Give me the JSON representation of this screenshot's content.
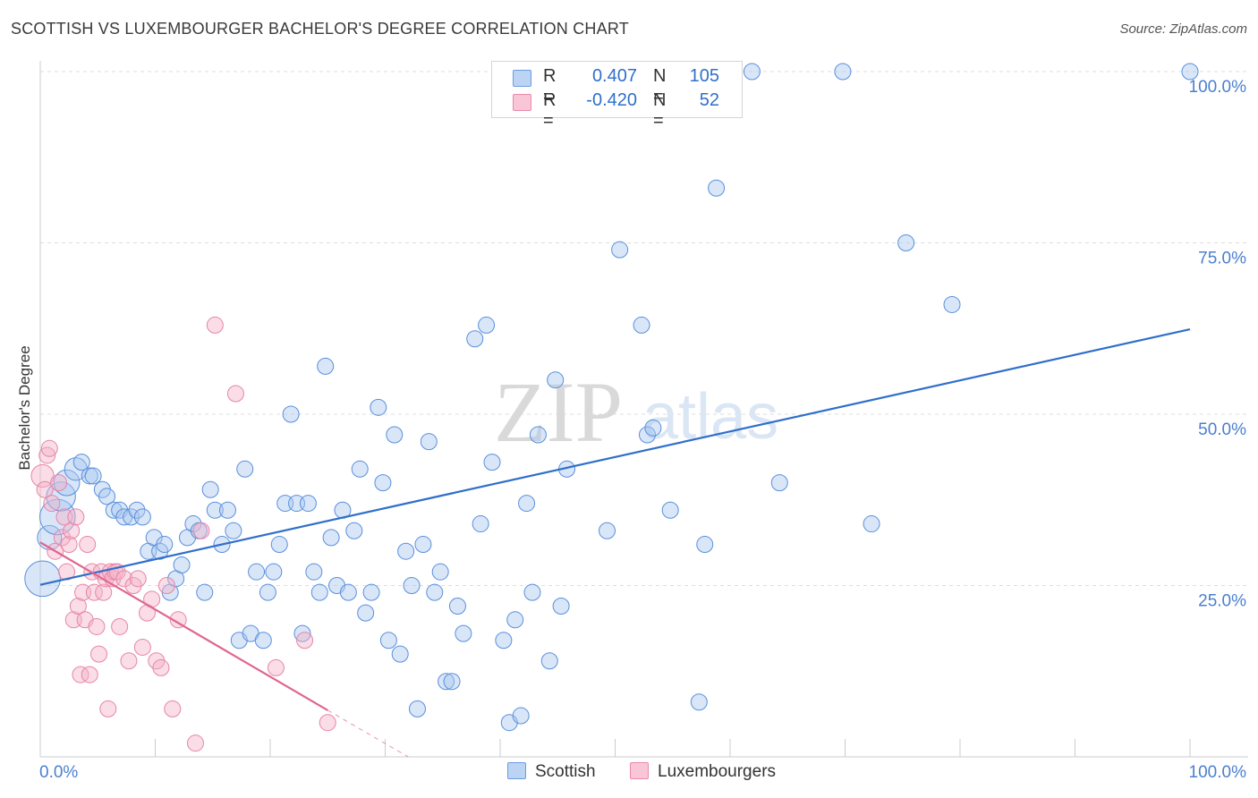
{
  "title": "SCOTTISH VS LUXEMBOURGER BACHELOR'S DEGREE CORRELATION CHART",
  "source": "Source: ZipAtlas.com",
  "watermark": {
    "zip": "ZIP",
    "atlas": "atlas"
  },
  "colors": {
    "blue": "#2f6fca",
    "blue_fill": "#a9c8f0",
    "pink": "#e0668f",
    "pink_fill": "#f5b3c8",
    "grid": "#dddddd",
    "axis_text": "#4a7fd0"
  },
  "legend": {
    "rows": [
      {
        "r_label": "R =",
        "r_value": "0.407",
        "n_label": "N =",
        "n_value": "105"
      },
      {
        "r_label": "R =",
        "r_value": "-0.420",
        "n_label": "N =",
        "n_value": "52"
      }
    ]
  },
  "bottom_legend": {
    "scottish": "Scottish",
    "luxembourgers": "Luxembourgers"
  },
  "chart_data": {
    "type": "scatter",
    "ylabel": "Bachelor's Degree",
    "xlim": [
      0,
      100
    ],
    "ylim": [
      0,
      100
    ],
    "x_tick_labels": {
      "min": "0.0%",
      "max": "100.0%"
    },
    "y_ticks": [
      {
        "value": 100,
        "label": "100.0%"
      },
      {
        "value": 75,
        "label": "75.0%"
      },
      {
        "value": 50,
        "label": "50.0%"
      },
      {
        "value": 25,
        "label": "25.0%"
      }
    ],
    "series": [
      {
        "name": "Scottish",
        "color": "#2f6fca",
        "trend": {
          "x": [
            0,
            100
          ],
          "y": [
            25.1,
            62.4
          ]
        },
        "points": [
          [
            0.2,
            26,
            2.2
          ],
          [
            0.8,
            32,
            1.5
          ],
          [
            1.5,
            35,
            2.2
          ],
          [
            1.8,
            38,
            1.8
          ],
          [
            2.3,
            40,
            1.6
          ],
          [
            3.1,
            42,
            1.4
          ],
          [
            3.6,
            43,
            1
          ],
          [
            4.3,
            41,
            1
          ],
          [
            4.6,
            41,
            1
          ],
          [
            5.4,
            39,
            1
          ],
          [
            5.8,
            38,
            1
          ],
          [
            6.4,
            36,
            1
          ],
          [
            6.9,
            36,
            1
          ],
          [
            7.3,
            35,
            1
          ],
          [
            7.9,
            35,
            1
          ],
          [
            8.4,
            36,
            1
          ],
          [
            8.9,
            35,
            1
          ],
          [
            9.4,
            30,
            1
          ],
          [
            9.9,
            32,
            1
          ],
          [
            10.4,
            30,
            1
          ],
          [
            10.8,
            31,
            1
          ],
          [
            11.3,
            24,
            1
          ],
          [
            11.8,
            26,
            1
          ],
          [
            12.3,
            28,
            1
          ],
          [
            12.8,
            32,
            1
          ],
          [
            13.3,
            34,
            1
          ],
          [
            13.8,
            33,
            1
          ],
          [
            14.3,
            24,
            1
          ],
          [
            14.8,
            39,
            1
          ],
          [
            15.2,
            36,
            1
          ],
          [
            15.8,
            31,
            1
          ],
          [
            16.3,
            36,
            1
          ],
          [
            16.8,
            33,
            1
          ],
          [
            17.3,
            17,
            1
          ],
          [
            17.8,
            42,
            1
          ],
          [
            18.3,
            18,
            1
          ],
          [
            18.8,
            27,
            1
          ],
          [
            19.4,
            17,
            1
          ],
          [
            19.8,
            24,
            1
          ],
          [
            20.3,
            27,
            1
          ],
          [
            20.8,
            31,
            1
          ],
          [
            21.3,
            37,
            1
          ],
          [
            21.8,
            50,
            1
          ],
          [
            22.3,
            37,
            1
          ],
          [
            22.8,
            18,
            1
          ],
          [
            23.3,
            37,
            1
          ],
          [
            23.8,
            27,
            1
          ],
          [
            24.3,
            24,
            1
          ],
          [
            24.8,
            57,
            1
          ],
          [
            25.3,
            32,
            1
          ],
          [
            25.8,
            25,
            1
          ],
          [
            26.3,
            36,
            1
          ],
          [
            26.8,
            24,
            1
          ],
          [
            27.3,
            33,
            1
          ],
          [
            27.8,
            42,
            1
          ],
          [
            28.3,
            21,
            1
          ],
          [
            28.8,
            24,
            1
          ],
          [
            29.4,
            51,
            1
          ],
          [
            29.8,
            40,
            1
          ],
          [
            30.3,
            17,
            1
          ],
          [
            30.8,
            47,
            1
          ],
          [
            31.3,
            15,
            1
          ],
          [
            31.8,
            30,
            1
          ],
          [
            32.3,
            25,
            1
          ],
          [
            32.8,
            7,
            1
          ],
          [
            33.3,
            31,
            1
          ],
          [
            33.8,
            46,
            1
          ],
          [
            34.3,
            24,
            1
          ],
          [
            34.8,
            27,
            1
          ],
          [
            35.3,
            11,
            1
          ],
          [
            35.8,
            11,
            1
          ],
          [
            36.3,
            22,
            1
          ],
          [
            36.8,
            18,
            1
          ],
          [
            37.8,
            61,
            1
          ],
          [
            38.3,
            34,
            1
          ],
          [
            38.8,
            63,
            1
          ],
          [
            39.3,
            43,
            1
          ],
          [
            40.3,
            17,
            1
          ],
          [
            40.8,
            5,
            1
          ],
          [
            41.3,
            20,
            1
          ],
          [
            41.8,
            6,
            1
          ],
          [
            42.3,
            37,
            1
          ],
          [
            42.8,
            24,
            1
          ],
          [
            43.3,
            47,
            1
          ],
          [
            44.3,
            14,
            1
          ],
          [
            44.8,
            55,
            1
          ],
          [
            45.3,
            22,
            1
          ],
          [
            45.8,
            42,
            1
          ],
          [
            49.3,
            33,
            1
          ],
          [
            50.4,
            74,
            1
          ],
          [
            52.3,
            63,
            1
          ],
          [
            52.8,
            47,
            1
          ],
          [
            53.3,
            48,
            1
          ],
          [
            54.8,
            36,
            1
          ],
          [
            57.3,
            8,
            1
          ],
          [
            57.8,
            31,
            1
          ],
          [
            58.8,
            83,
            1
          ],
          [
            61.9,
            100,
            1
          ],
          [
            64.3,
            40,
            1
          ],
          [
            69.8,
            100,
            1
          ],
          [
            72.3,
            34,
            1
          ],
          [
            75.3,
            75,
            1
          ],
          [
            79.3,
            66,
            1
          ],
          [
            100,
            100,
            1
          ]
        ]
      },
      {
        "name": "Luxembourgers",
        "color": "#e0668f",
        "trend": {
          "x": [
            0,
            25
          ],
          "y": [
            31.3,
            6.8
          ]
        },
        "trend_dashed": {
          "x": [
            25,
            32
          ],
          "y": [
            6.8,
            0
          ]
        },
        "points": [
          [
            0.2,
            41,
            1.4
          ],
          [
            0.4,
            39,
            1
          ],
          [
            0.6,
            44,
            1
          ],
          [
            0.8,
            45,
            1
          ],
          [
            1.0,
            37,
            1
          ],
          [
            1.3,
            30,
            1
          ],
          [
            1.6,
            40,
            1
          ],
          [
            1.9,
            32,
            1
          ],
          [
            2.1,
            35,
            1
          ],
          [
            2.3,
            27,
            1
          ],
          [
            2.5,
            31,
            1
          ],
          [
            2.7,
            33,
            1
          ],
          [
            2.9,
            20,
            1
          ],
          [
            3.1,
            35,
            1
          ],
          [
            3.3,
            22,
            1
          ],
          [
            3.5,
            12,
            1
          ],
          [
            3.7,
            24,
            1
          ],
          [
            3.9,
            20,
            1
          ],
          [
            4.1,
            31,
            1
          ],
          [
            4.3,
            12,
            1
          ],
          [
            4.5,
            27,
            1
          ],
          [
            4.7,
            24,
            1
          ],
          [
            4.9,
            19,
            1
          ],
          [
            5.1,
            15,
            1
          ],
          [
            5.3,
            27,
            1
          ],
          [
            5.5,
            24,
            1
          ],
          [
            5.7,
            26,
            1
          ],
          [
            5.9,
            7,
            1
          ],
          [
            6.1,
            27,
            1
          ],
          [
            6.3,
            26,
            1
          ],
          [
            6.5,
            27,
            1
          ],
          [
            6.7,
            27,
            1
          ],
          [
            6.9,
            19,
            1
          ],
          [
            7.3,
            26,
            1
          ],
          [
            7.7,
            14,
            1
          ],
          [
            8.1,
            25,
            1
          ],
          [
            8.5,
            26,
            1
          ],
          [
            8.9,
            16,
            1
          ],
          [
            9.3,
            21,
            1
          ],
          [
            9.7,
            23,
            1
          ],
          [
            10.1,
            14,
            1
          ],
          [
            10.5,
            13,
            1
          ],
          [
            11.0,
            25,
            1
          ],
          [
            11.5,
            7,
            1
          ],
          [
            12.0,
            20,
            1
          ],
          [
            13.5,
            2,
            1
          ],
          [
            14.0,
            33,
            1
          ],
          [
            15.2,
            63,
            1
          ],
          [
            17.0,
            53,
            1
          ],
          [
            20.5,
            13,
            1
          ],
          [
            23.0,
            17,
            1
          ],
          [
            25.0,
            5,
            1
          ]
        ]
      }
    ]
  }
}
